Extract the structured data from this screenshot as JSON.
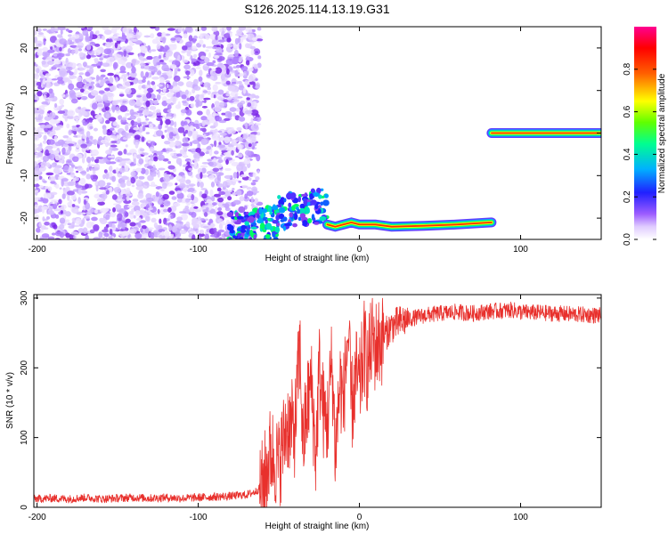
{
  "title": "S126.2025.114.13.19.G31",
  "chart_data": [
    {
      "type": "heatmap",
      "xlabel": "Height of straight line (km)",
      "ylabel": "Frequency (Hz)",
      "xlim": [
        -202,
        150
      ],
      "ylim": [
        -25,
        25
      ],
      "x_ticks": [
        -200,
        -100,
        0,
        100
      ],
      "y_ticks": [
        -20,
        -10,
        0,
        10,
        20
      ],
      "colorbar": {
        "label": "Normalized spectral amplitude",
        "range": [
          0,
          1
        ],
        "ticks": [
          0.0,
          0.2,
          0.4,
          0.6,
          0.8
        ],
        "colormap": [
          "#ffffff",
          "#9c5cff",
          "#2020ff",
          "#00c0ff",
          "#00ff60",
          "#ffff00",
          "#ff6000",
          "#ff0000",
          "#ff00a0"
        ]
      },
      "regions": [
        {
          "name": "noise",
          "x_range": [
            -202,
            -62
          ],
          "freq_range": [
            -25,
            25
          ]
        },
        {
          "name": "transition",
          "x_range": [
            -80,
            -20
          ],
          "freq_range": [
            -25,
            -15
          ]
        },
        {
          "name": "low-tone",
          "x_range": [
            -20,
            82
          ],
          "freq_center": -21.5
        },
        {
          "name": "zero-tone",
          "x_range": [
            82,
            150
          ],
          "freq_center": 0
        }
      ],
      "ridge": [
        {
          "x": -20,
          "y": -21.5
        },
        {
          "x": -15,
          "y": -22
        },
        {
          "x": -10,
          "y": -21.5
        },
        {
          "x": -5,
          "y": -21
        },
        {
          "x": 0,
          "y": -21.5
        },
        {
          "x": 10,
          "y": -21.5
        },
        {
          "x": 20,
          "y": -22
        },
        {
          "x": 40,
          "y": -21.8
        },
        {
          "x": 60,
          "y": -21.5
        },
        {
          "x": 82,
          "y": -21
        }
      ],
      "ridge2": [
        {
          "x": 82,
          "y": 0
        },
        {
          "x": 100,
          "y": 0
        },
        {
          "x": 120,
          "y": 0
        },
        {
          "x": 150,
          "y": 0
        }
      ]
    },
    {
      "type": "line",
      "xlabel": "Height of straight line (km)",
      "ylabel": "SNR (10 * v/v)",
      "xlim": [
        -202,
        150
      ],
      "ylim": [
        0,
        305
      ],
      "x_ticks": [
        -200,
        -100,
        0,
        100
      ],
      "y_ticks": [
        0,
        100,
        200,
        300
      ],
      "series": [
        {
          "color": "#e8302c",
          "x": [
            -202,
            -190,
            -180,
            -170,
            -160,
            -150,
            -140,
            -130,
            -120,
            -110,
            -100,
            -90,
            -80,
            -70,
            -65,
            -60,
            -55,
            -50,
            -45,
            -40,
            -37,
            -35,
            -32,
            -30,
            -27,
            -25,
            -22,
            -20,
            -17,
            -15,
            -12,
            -10,
            -7,
            -5,
            -2,
            0,
            3,
            5,
            8,
            10,
            15,
            20,
            25,
            30,
            35,
            40,
            50,
            60,
            70,
            80,
            90,
            95,
            100,
            110,
            120,
            130,
            140,
            150
          ],
          "y": [
            12,
            13,
            12,
            14,
            12,
            13,
            14,
            13,
            14,
            13,
            14,
            15,
            16,
            18,
            22,
            30,
            80,
            60,
            120,
            110,
            230,
            90,
            150,
            180,
            70,
            200,
            130,
            120,
            210,
            80,
            180,
            150,
            250,
            140,
            190,
            170,
            230,
            200,
            240,
            230,
            245,
            260,
            265,
            270,
            272,
            275,
            278,
            280,
            278,
            281,
            282,
            283,
            280,
            279,
            278,
            277,
            276,
            275
          ]
        }
      ]
    }
  ]
}
